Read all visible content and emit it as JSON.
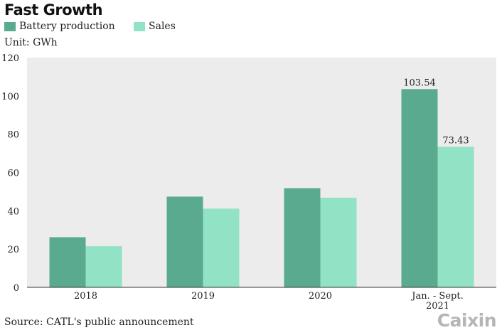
{
  "title": "Fast Growth",
  "unit": "Unit: GWh",
  "source": "Source: CATL's public announcement",
  "logo": "Caixin",
  "colors": {
    "background": "#ececec",
    "production": "#5aaa8f",
    "sales": "#92e3c5"
  },
  "chart_data": {
    "type": "bar",
    "title": "Fast Growth",
    "ylabel": "Unit: GWh",
    "categories": [
      "2018",
      "2019",
      "2020",
      "Jan. - Sept.\n2021"
    ],
    "series": [
      {
        "name": "Battery production",
        "values": [
          26.2,
          47.4,
          51.8,
          103.54
        ],
        "color": "#5aaa8f",
        "labels": [
          null,
          null,
          null,
          "103.54"
        ]
      },
      {
        "name": "Sales",
        "values": [
          21.5,
          41.1,
          46.8,
          73.43
        ],
        "color": "#92e3c5",
        "labels": [
          null,
          null,
          null,
          "73.43"
        ]
      }
    ],
    "ylim": [
      0,
      120
    ],
    "yticks": [
      0,
      20,
      40,
      60,
      80,
      100,
      120
    ],
    "grid": false,
    "legend": "top-left"
  }
}
